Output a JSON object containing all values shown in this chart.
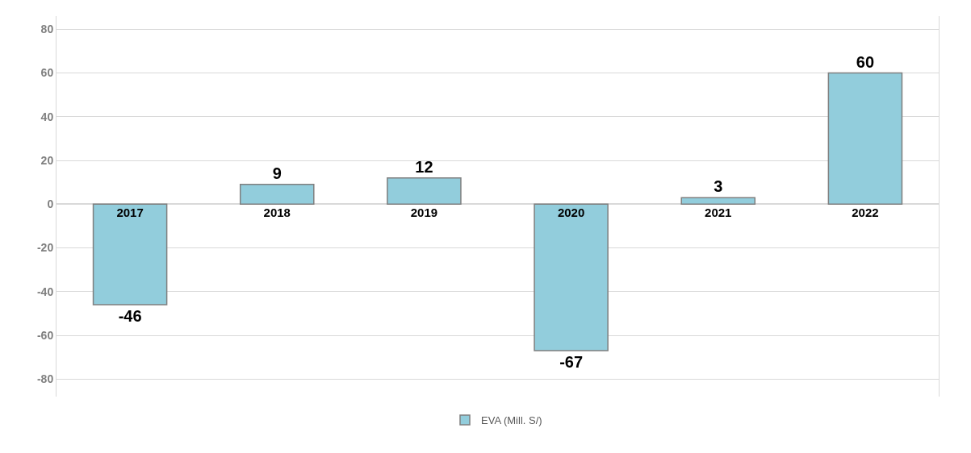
{
  "chart_data": {
    "type": "bar",
    "categories": [
      "2017",
      "2018",
      "2019",
      "2020",
      "2021",
      "2022"
    ],
    "series": [
      {
        "name": "EVA (Mill. S/)",
        "color": "#92cddc",
        "values": [
          -46,
          9,
          12,
          -67,
          3,
          60
        ]
      }
    ],
    "ylim": [
      -88,
      86
    ],
    "yticks": [
      -80,
      -60,
      -40,
      -20,
      0,
      20,
      40,
      60,
      80
    ],
    "grid": "y",
    "legend": "bottom",
    "data_labels": true
  }
}
